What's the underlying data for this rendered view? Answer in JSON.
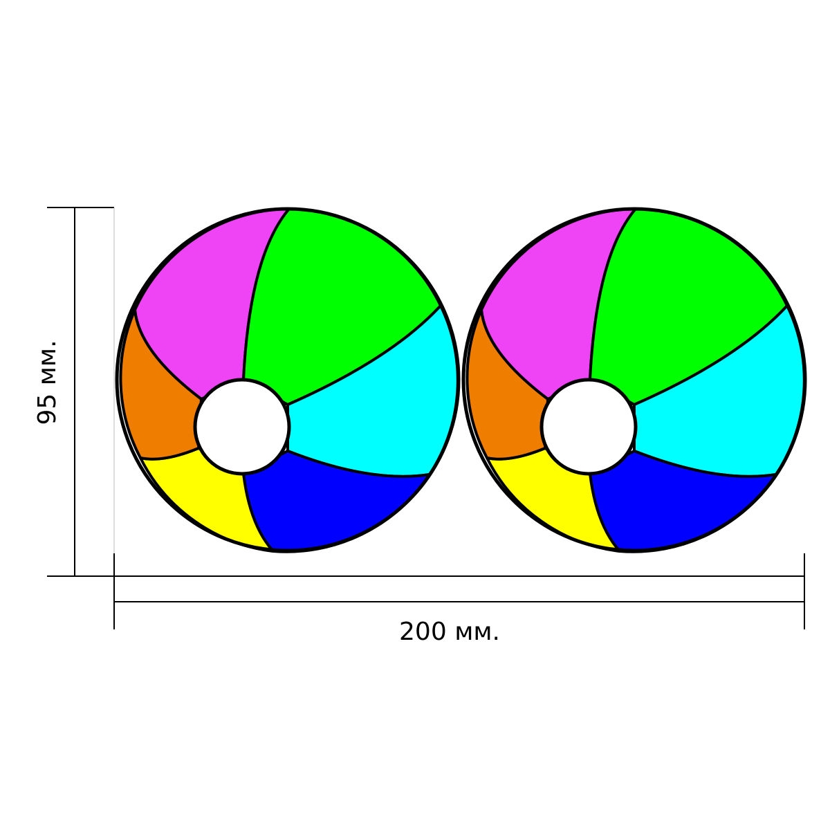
{
  "dimensions": {
    "height": {
      "label": "95 мм."
    },
    "width": {
      "label": "200 мм."
    }
  }
}
